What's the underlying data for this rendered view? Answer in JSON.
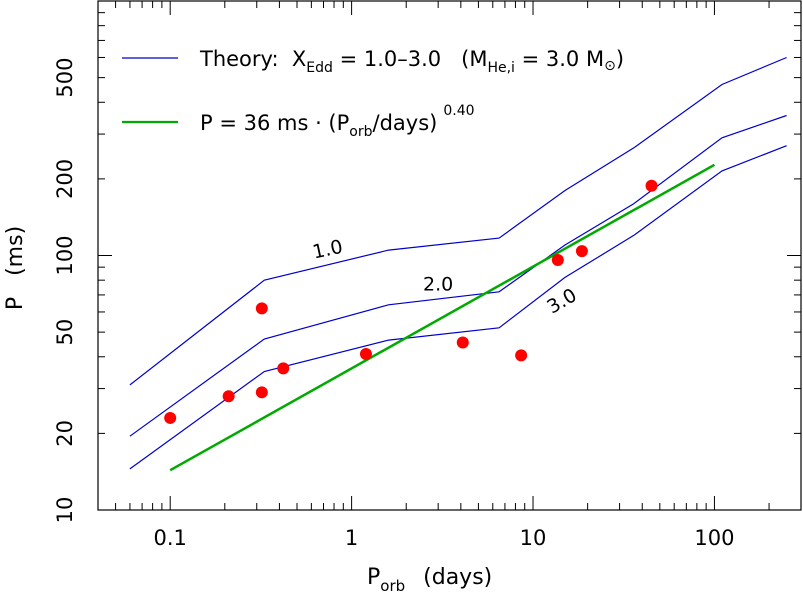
{
  "chart_data": {
    "type": "scatter",
    "xscale": "log",
    "yscale": "log",
    "xlim": [
      0.04,
      300
    ],
    "ylim": [
      10,
      1000
    ],
    "grid": false,
    "legend_placement": "top-left",
    "xlabel": {
      "main": "P",
      "sub": "orb",
      "rest": "(days)"
    },
    "ylabel": "P   (ms)",
    "xticks": [
      {
        "value": 0.1,
        "label": "0.1"
      },
      {
        "value": 1,
        "label": "1"
      },
      {
        "value": 10,
        "label": "10"
      },
      {
        "value": 100,
        "label": "100"
      }
    ],
    "yticks": [
      {
        "value": 10,
        "label": "10"
      },
      {
        "value": 20,
        "label": "20"
      },
      {
        "value": 50,
        "label": "50"
      },
      {
        "value": 100,
        "label": "100"
      },
      {
        "value": 200,
        "label": "200"
      },
      {
        "value": 500,
        "label": "500"
      }
    ],
    "legend": {
      "theory": {
        "prefix": "Theory:  X",
        "sub1": "Edd",
        "middle": " = 1.0–3.0   (M",
        "sub2": "He,i",
        "suffix": " = 3.0 M",
        "sun": "⊙",
        "close": ")"
      },
      "fit": {
        "prefix": "P = 36 ms · (P",
        "sub": "orb",
        "suffix": "/days)",
        "sup": "0.40"
      }
    },
    "series": [
      {
        "label": "1.0",
        "color": "#0000cc",
        "x": [
          0.06,
          0.33,
          1.6,
          6.5,
          15,
          36,
          110,
          250
        ],
        "y": [
          31,
          80,
          105,
          117,
          180,
          265,
          470,
          600
        ]
      },
      {
        "label": "2.0",
        "color": "#0000cc",
        "x": [
          0.06,
          0.33,
          1.6,
          6.5,
          15,
          36,
          110,
          250
        ],
        "y": [
          19.5,
          47,
          64,
          72,
          110,
          160,
          290,
          355
        ]
      },
      {
        "label": "3.0",
        "color": "#0000cc",
        "x": [
          0.06,
          0.33,
          1.6,
          6.5,
          15,
          36,
          110,
          250
        ],
        "y": [
          14.5,
          35,
          46.5,
          52,
          82,
          120,
          215,
          270
        ]
      }
    ],
    "fit": {
      "color": "#00aa00",
      "coefficient": 36,
      "exponent": 0.4,
      "xrange": [
        0.1,
        100
      ]
    },
    "points": {
      "color": "#ff0000",
      "x": [
        0.1,
        0.21,
        0.32,
        0.32,
        0.42,
        1.2,
        4.1,
        8.6,
        13.7,
        18.6,
        45
      ],
      "y": [
        23,
        28,
        29,
        62,
        36,
        41,
        45.5,
        40.5,
        96,
        104,
        188
      ]
    },
    "curve_labels": [
      {
        "text": "1.0",
        "x": 0.75,
        "y": 100,
        "rotate": -12
      },
      {
        "text": "2.0",
        "x": 3.0,
        "y": 73,
        "rotate": 0
      },
      {
        "text": "3.0",
        "x": 15,
        "y": 63,
        "rotate": -30
      }
    ]
  }
}
